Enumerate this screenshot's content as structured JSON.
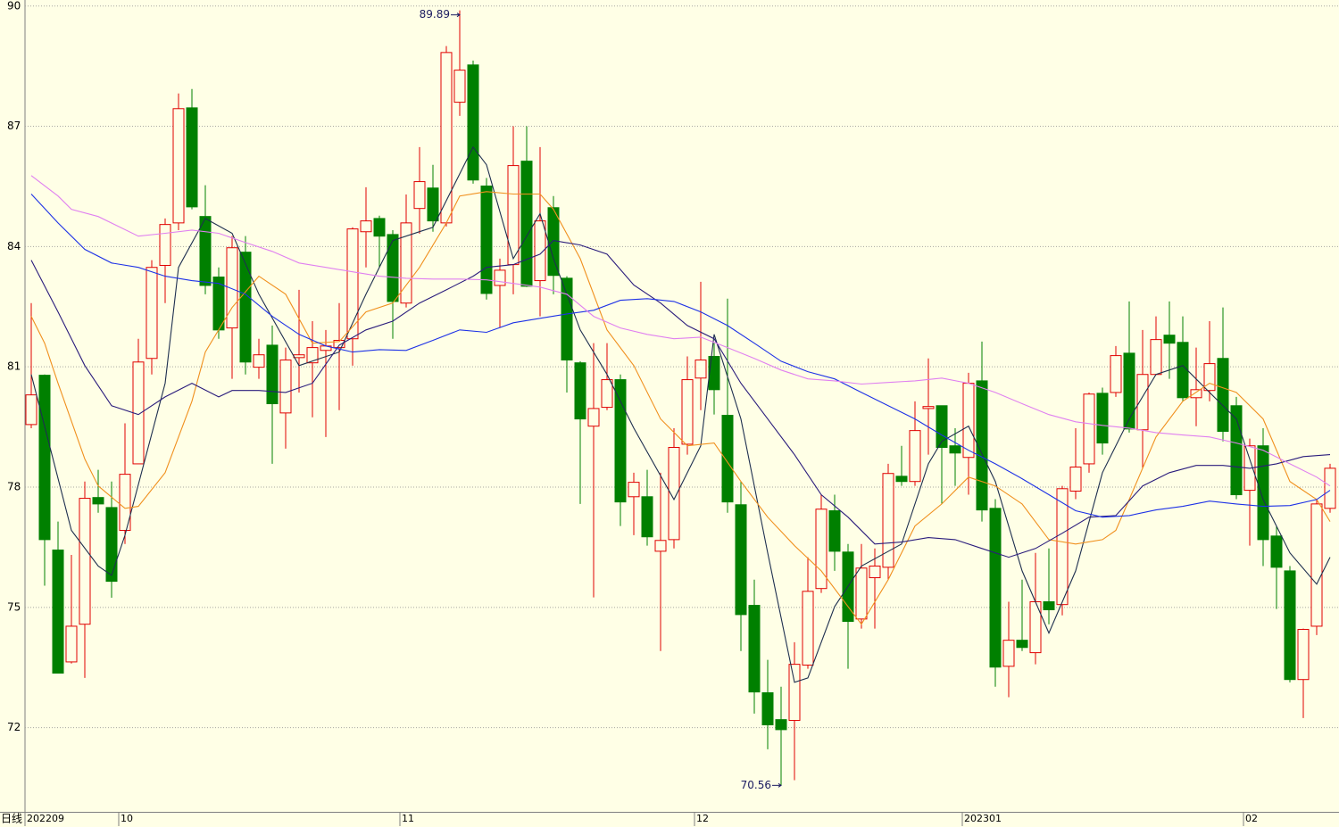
{
  "chart_data": {
    "type": "candlestick",
    "axis_label": "日线",
    "categories": [
      "202209",
      null,
      null,
      null,
      null,
      null,
      null,
      "10",
      null,
      null,
      null,
      null,
      null,
      null,
      null,
      null,
      null,
      null,
      null,
      null,
      null,
      null,
      null,
      null,
      null,
      null,
      null,
      null,
      "11",
      null,
      null,
      null,
      null,
      null,
      null,
      null,
      null,
      null,
      null,
      null,
      null,
      null,
      null,
      null,
      null,
      null,
      null,
      null,
      null,
      null,
      "12",
      null,
      null,
      null,
      null,
      null,
      null,
      null,
      null,
      null,
      null,
      null,
      null,
      null,
      null,
      null,
      null,
      null,
      null,
      null,
      "202301",
      null,
      null,
      null,
      null,
      null,
      null,
      null,
      null,
      null,
      null,
      null,
      null,
      null,
      null,
      null,
      null,
      null,
      null,
      null,
      null,
      "02",
      null,
      null,
      null,
      null,
      null,
      null
    ],
    "open": [
      79.56,
      80.79,
      76.43,
      73.64,
      74.58,
      77.74,
      77.49,
      76.92,
      78.58,
      81.21,
      83.53,
      84.59,
      87.46,
      84.75,
      83.24,
      81.97,
      83.86,
      80.99,
      81.54,
      79.85,
      81.23,
      81.1,
      81.41,
      81.48,
      81.7,
      84.37,
      84.7,
      84.3,
      82.59,
      84.95,
      85.46,
      84.59,
      87.6,
      88.53,
      85.51,
      83.03,
      83.55,
      86.13,
      83.15,
      84.97,
      83.21,
      81.1,
      79.52,
      79.99,
      80.68,
      77.76,
      77.76,
      76.4,
      76.69,
      79.07,
      80.72,
      81.26,
      79.79,
      77.56,
      75.05,
      72.87,
      72.2,
      72.18,
      73.56,
      75.47,
      77.41,
      76.38,
      74.71,
      75.74,
      76.0,
      78.27,
      78.14,
      79.96,
      80.03,
      79.03,
      78.74,
      80.65,
      77.47,
      73.53,
      74.18,
      73.87,
      75.14,
      75.07,
      77.9,
      78.58,
      80.34,
      80.36,
      81.34,
      79.43,
      80.81,
      81.79,
      81.61,
      80.23,
      80.41,
      81.21,
      80.03,
      77.92,
      79.03,
      76.78,
      75.91,
      73.2,
      74.53,
      77.47
    ],
    "high": [
      82.59,
      80.81,
      77.14,
      76.31,
      78.14,
      78.43,
      78.14,
      79.59,
      81.7,
      83.66,
      84.7,
      87.82,
      87.93,
      85.53,
      83.48,
      84.26,
      84.26,
      81.7,
      82.03,
      81.48,
      82.92,
      82.14,
      81.92,
      82.59,
      84.48,
      85.48,
      84.77,
      84.41,
      85.3,
      86.48,
      86.04,
      89.0,
      89.89,
      88.64,
      85.71,
      83.7,
      87.0,
      87.0,
      86.48,
      85.26,
      83.26,
      81.14,
      81.59,
      81.59,
      80.81,
      78.36,
      78.43,
      78.36,
      79.47,
      81.26,
      83.12,
      81.59,
      82.7,
      78.14,
      75.69,
      73.69,
      73.02,
      74.13,
      76.25,
      77.81,
      77.81,
      76.58,
      76.58,
      76.47,
      78.58,
      79.03,
      80.14,
      81.21,
      80.03,
      79.47,
      80.85,
      81.63,
      77.7,
      75.14,
      75.69,
      76.36,
      76.47,
      78.03,
      79.47,
      80.36,
      80.48,
      81.52,
      82.63,
      81.92,
      82.26,
      82.63,
      82.26,
      81.48,
      82.14,
      82.48,
      80.25,
      79.21,
      79.47,
      77.03,
      76.03,
      74.47,
      77.7,
      78.58
    ],
    "low": [
      79.47,
      75.54,
      73.36,
      73.6,
      73.24,
      77.36,
      75.24,
      76.58,
      78.58,
      80.81,
      82.59,
      84.41,
      84.93,
      82.81,
      81.7,
      80.7,
      80.81,
      80.7,
      78.58,
      78.96,
      80.36,
      79.74,
      79.25,
      79.92,
      81.03,
      83.48,
      83.48,
      81.7,
      82.48,
      84.32,
      84.37,
      84.5,
      87.26,
      85.57,
      82.68,
      81.97,
      82.81,
      82.99,
      82.26,
      82.81,
      80.36,
      77.58,
      75.25,
      79.92,
      77.03,
      76.8,
      76.54,
      73.91,
      76.47,
      78.81,
      79.92,
      79.81,
      77.36,
      73.91,
      72.35,
      71.46,
      70.56,
      70.69,
      73.47,
      75.36,
      75.91,
      73.47,
      74.47,
      74.47,
      75.69,
      78.03,
      78.03,
      78.81,
      77.58,
      78.03,
      77.81,
      77.14,
      73.02,
      72.76,
      73.91,
      73.58,
      74.58,
      74.8,
      77.7,
      78.36,
      78.81,
      80.25,
      79.36,
      78.47,
      80.81,
      80.7,
      80.14,
      79.52,
      80.14,
      79.14,
      77.7,
      76.54,
      76.03,
      74.96,
      73.13,
      72.24,
      74.31,
      77.36
    ],
    "close": [
      80.3,
      76.69,
      73.36,
      74.53,
      77.72,
      77.58,
      75.65,
      78.32,
      81.12,
      83.48,
      84.55,
      87.44,
      84.99,
      83.03,
      81.92,
      83.97,
      81.12,
      81.3,
      80.08,
      81.17,
      81.3,
      81.48,
      81.52,
      81.66,
      84.44,
      84.64,
      84.26,
      82.63,
      84.59,
      85.62,
      84.64,
      88.84,
      88.4,
      85.66,
      82.83,
      83.41,
      86.02,
      83.01,
      84.64,
      83.28,
      81.17,
      79.7,
      79.96,
      80.68,
      77.63,
      78.12,
      76.76,
      76.67,
      78.99,
      80.68,
      81.17,
      80.43,
      77.63,
      74.82,
      72.89,
      72.07,
      71.95,
      73.58,
      75.4,
      77.45,
      76.4,
      74.65,
      75.98,
      76.03,
      78.34,
      78.14,
      79.41,
      80.01,
      78.99,
      78.85,
      80.59,
      77.43,
      73.51,
      74.18,
      74.0,
      75.14,
      74.94,
      77.96,
      78.5,
      80.32,
      79.1,
      81.28,
      79.45,
      80.81,
      81.68,
      81.59,
      80.23,
      80.43,
      81.08,
      79.39,
      77.81,
      79.03,
      76.69,
      76.0,
      73.2,
      74.45,
      77.58,
      78.47
    ],
    "up_color": "#e00000",
    "down_color": "#008000",
    "series": [
      {
        "color": "#1e2f4f",
        "x": [
          0,
          3,
          5,
          6,
          7,
          10,
          11,
          13,
          15,
          17,
          20,
          23,
          25,
          27,
          29,
          30,
          33,
          34,
          36,
          38,
          39,
          41,
          43,
          45,
          48,
          50,
          51,
          53,
          55,
          57,
          58,
          60,
          62,
          65,
          67,
          68,
          70,
          72,
          74,
          76,
          78,
          80,
          82,
          84,
          86,
          88,
          90,
          92,
          94,
          96,
          97
        ],
        "values": [
          80.81,
          76.92,
          76.03,
          75.8,
          76.8,
          80.59,
          83.48,
          84.7,
          84.33,
          82.81,
          81.03,
          81.37,
          82.81,
          84.15,
          84.37,
          84.48,
          86.48,
          86.04,
          83.7,
          84.82,
          83.7,
          81.92,
          80.81,
          79.47,
          77.69,
          79.03,
          81.81,
          79.7,
          76.36,
          73.13,
          73.24,
          75.02,
          76.03,
          76.58,
          78.58,
          79.14,
          79.52,
          78.14,
          75.91,
          74.36,
          75.91,
          78.36,
          79.7,
          80.81,
          81.03,
          80.36,
          79.7,
          77.69,
          76.36,
          75.58,
          76.25
        ]
      },
      {
        "color": "#f0901e",
        "x": [
          0,
          1,
          2,
          4,
          5,
          7,
          8,
          10,
          12,
          13,
          15,
          17,
          19,
          21,
          23,
          25,
          27,
          29,
          31,
          32,
          34,
          36,
          38,
          39,
          41,
          43,
          45,
          47,
          49,
          51,
          53,
          55,
          57,
          59,
          61,
          62,
          64,
          66,
          68,
          70,
          72,
          74,
          76,
          78,
          80,
          81,
          82,
          84,
          86,
          88,
          90,
          92,
          94,
          96,
          97
        ],
        "values": [
          82.26,
          81.59,
          80.59,
          78.7,
          78.03,
          77.47,
          77.52,
          78.36,
          80.14,
          81.37,
          82.48,
          83.26,
          82.81,
          81.59,
          81.63,
          82.37,
          82.59,
          83.48,
          84.59,
          85.26,
          85.37,
          85.31,
          85.31,
          84.93,
          83.7,
          81.92,
          81.03,
          79.7,
          79.03,
          79.1,
          78.14,
          77.25,
          76.54,
          75.91,
          75.02,
          74.58,
          75.69,
          77.03,
          77.58,
          78.25,
          78.03,
          77.58,
          76.69,
          76.58,
          76.69,
          76.92,
          77.69,
          79.25,
          80.14,
          80.59,
          80.36,
          79.7,
          78.14,
          77.69,
          77.14
        ]
      },
      {
        "color": "#2a1c7c",
        "x": [
          0,
          2,
          4,
          6,
          8,
          10,
          12,
          14,
          15,
          17,
          19,
          21,
          23,
          25,
          27,
          29,
          31,
          33,
          34,
          36,
          38,
          39,
          41,
          43,
          45,
          47,
          49,
          51,
          53,
          55,
          57,
          59,
          61,
          63,
          65,
          67,
          69,
          71,
          73,
          75,
          77,
          79,
          81,
          83,
          85,
          87,
          89,
          91,
          93,
          95,
          97
        ],
        "values": [
          83.66,
          82.37,
          81.03,
          80.03,
          79.81,
          80.25,
          80.59,
          80.25,
          80.41,
          80.41,
          80.36,
          80.59,
          81.54,
          81.92,
          82.14,
          82.59,
          82.92,
          83.26,
          83.48,
          83.55,
          83.81,
          84.15,
          84.04,
          83.81,
          83.04,
          82.59,
          82.03,
          81.7,
          80.59,
          79.7,
          78.81,
          77.81,
          77.25,
          76.58,
          76.63,
          76.74,
          76.69,
          76.47,
          76.25,
          76.47,
          76.85,
          77.25,
          77.29,
          78.03,
          78.36,
          78.54,
          78.54,
          78.47,
          78.58,
          78.76,
          78.81
        ]
      },
      {
        "color": "#1e32e6",
        "x": [
          0,
          2,
          4,
          6,
          8,
          10,
          12,
          14,
          16,
          18,
          20,
          22,
          24,
          26,
          28,
          30,
          32,
          34,
          36,
          38,
          40,
          42,
          44,
          46,
          48,
          50,
          52,
          54,
          56,
          58,
          60,
          62,
          64,
          66,
          68,
          70,
          72,
          74,
          76,
          78,
          80,
          82,
          84,
          86,
          88,
          90,
          92,
          94,
          96,
          97
        ],
        "values": [
          85.31,
          84.59,
          83.93,
          83.59,
          83.48,
          83.26,
          83.15,
          83.08,
          82.81,
          82.26,
          81.81,
          81.52,
          81.37,
          81.43,
          81.41,
          81.66,
          81.92,
          81.86,
          82.1,
          82.21,
          82.32,
          82.41,
          82.66,
          82.7,
          82.63,
          82.37,
          82.03,
          81.59,
          81.14,
          80.88,
          80.7,
          80.36,
          80.03,
          79.7,
          79.3,
          78.92,
          78.58,
          78.21,
          77.81,
          77.41,
          77.25,
          77.29,
          77.43,
          77.52,
          77.65,
          77.58,
          77.52,
          77.54,
          77.69,
          77.92
        ]
      },
      {
        "color": "#e080f0",
        "x": [
          0,
          2,
          3,
          5,
          8,
          10,
          12,
          14,
          16,
          18,
          20,
          22,
          24,
          26,
          28,
          30,
          32,
          34,
          36,
          38,
          40,
          42,
          44,
          46,
          48,
          50,
          52,
          54,
          56,
          58,
          60,
          62,
          64,
          66,
          68,
          70,
          72,
          74,
          76,
          78,
          80,
          82,
          84,
          86,
          88,
          90,
          92,
          94,
          96,
          97
        ],
        "values": [
          85.77,
          85.26,
          84.93,
          84.75,
          84.26,
          84.33,
          84.41,
          84.33,
          84.1,
          83.88,
          83.59,
          83.48,
          83.37,
          83.26,
          83.21,
          83.19,
          83.19,
          83.17,
          83.08,
          82.99,
          82.81,
          82.26,
          81.97,
          81.81,
          81.7,
          81.74,
          81.48,
          81.21,
          80.92,
          80.7,
          80.65,
          80.57,
          80.61,
          80.65,
          80.72,
          80.59,
          80.36,
          80.08,
          79.81,
          79.63,
          79.54,
          79.47,
          79.36,
          79.3,
          79.25,
          79.1,
          78.92,
          78.58,
          78.25,
          78.03
        ]
      }
    ],
    "ylim": [
      69.9,
      90.15
    ],
    "yticks": [
      72,
      75,
      78,
      81,
      84,
      87,
      90
    ],
    "grid": true,
    "max_index": 32,
    "min_index": 56
  }
}
